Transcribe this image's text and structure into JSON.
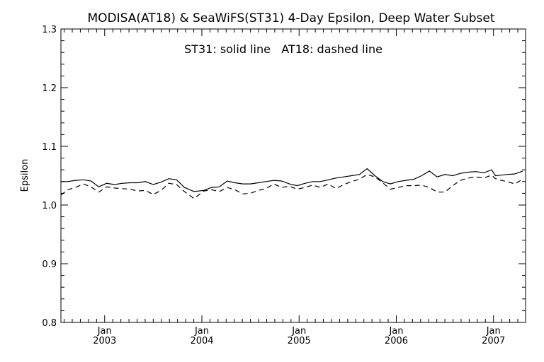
{
  "chart_data": {
    "type": "line",
    "title": "MODISA(AT18) & SeaWiFS(ST31) 4-Day Epsilon, Deep Water Subset",
    "annotation": "ST31: solid line   AT18: dashed line",
    "xlabel": "",
    "ylabel": "Epsilon",
    "ylim": [
      0.8,
      1.3
    ],
    "xlim": [
      2002.55,
      2007.33
    ],
    "yticks": [
      "0.8",
      "0.9",
      "1.0",
      "1.1",
      "1.2",
      "1.3"
    ],
    "xticks": [
      {
        "month": "Jan",
        "year": "2003",
        "x": 2003.0
      },
      {
        "month": "Jan",
        "year": "2004",
        "x": 2004.0
      },
      {
        "month": "Jan",
        "year": "2005",
        "x": 2005.0
      },
      {
        "month": "Jan",
        "year": "2006",
        "x": 2006.0
      },
      {
        "month": "Jan",
        "year": "2007",
        "x": 2007.0
      }
    ],
    "grid": false,
    "legend": "annotation-top-center",
    "series": [
      {
        "name": "ST31",
        "style": "solid",
        "color": "#000000",
        "points": [
          [
            2002.55,
            1.04
          ],
          [
            2002.62,
            1.04
          ],
          [
            2002.7,
            1.042
          ],
          [
            2002.78,
            1.043
          ],
          [
            2002.86,
            1.041
          ],
          [
            2002.94,
            1.031
          ],
          [
            2003.02,
            1.037
          ],
          [
            2003.1,
            1.035
          ],
          [
            2003.18,
            1.037
          ],
          [
            2003.26,
            1.038
          ],
          [
            2003.34,
            1.038
          ],
          [
            2003.42,
            1.04
          ],
          [
            2003.5,
            1.035
          ],
          [
            2003.58,
            1.039
          ],
          [
            2003.66,
            1.045
          ],
          [
            2003.74,
            1.043
          ],
          [
            2003.82,
            1.03
          ],
          [
            2003.92,
            1.023
          ],
          [
            2004.02,
            1.025
          ],
          [
            2004.1,
            1.03
          ],
          [
            2004.18,
            1.031
          ],
          [
            2004.26,
            1.041
          ],
          [
            2004.34,
            1.038
          ],
          [
            2004.42,
            1.036
          ],
          [
            2004.5,
            1.036
          ],
          [
            2004.58,
            1.038
          ],
          [
            2004.66,
            1.04
          ],
          [
            2004.74,
            1.042
          ],
          [
            2004.82,
            1.041
          ],
          [
            2004.9,
            1.036
          ],
          [
            2004.98,
            1.033
          ],
          [
            2005.06,
            1.037
          ],
          [
            2005.14,
            1.04
          ],
          [
            2005.22,
            1.04
          ],
          [
            2005.3,
            1.043
          ],
          [
            2005.38,
            1.046
          ],
          [
            2005.46,
            1.048
          ],
          [
            2005.54,
            1.05
          ],
          [
            2005.62,
            1.052
          ],
          [
            2005.7,
            1.062
          ],
          [
            2005.78,
            1.05
          ],
          [
            2005.86,
            1.04
          ],
          [
            2005.94,
            1.036
          ],
          [
            2006.02,
            1.04
          ],
          [
            2006.1,
            1.042
          ],
          [
            2006.18,
            1.044
          ],
          [
            2006.26,
            1.05
          ],
          [
            2006.34,
            1.058
          ],
          [
            2006.42,
            1.048
          ],
          [
            2006.5,
            1.052
          ],
          [
            2006.58,
            1.05
          ],
          [
            2006.66,
            1.054
          ],
          [
            2006.74,
            1.056
          ],
          [
            2006.82,
            1.057
          ],
          [
            2006.9,
            1.055
          ],
          [
            2006.98,
            1.06
          ],
          [
            2007.02,
            1.05
          ],
          [
            2007.08,
            1.051
          ],
          [
            2007.14,
            1.052
          ],
          [
            2007.22,
            1.053
          ],
          [
            2007.3,
            1.058
          ]
        ]
      },
      {
        "name": "AT18",
        "style": "dashed",
        "color": "#000000",
        "points": [
          [
            2002.55,
            1.017
          ],
          [
            2002.62,
            1.026
          ],
          [
            2002.7,
            1.03
          ],
          [
            2002.78,
            1.036
          ],
          [
            2002.86,
            1.031
          ],
          [
            2002.94,
            1.022
          ],
          [
            2003.02,
            1.031
          ],
          [
            2003.1,
            1.029
          ],
          [
            2003.18,
            1.028
          ],
          [
            2003.26,
            1.027
          ],
          [
            2003.34,
            1.024
          ],
          [
            2003.42,
            1.025
          ],
          [
            2003.5,
            1.018
          ],
          [
            2003.58,
            1.025
          ],
          [
            2003.66,
            1.037
          ],
          [
            2003.74,
            1.035
          ],
          [
            2003.82,
            1.023
          ],
          [
            2003.92,
            1.011
          ],
          [
            2004.02,
            1.024
          ],
          [
            2004.1,
            1.026
          ],
          [
            2004.18,
            1.023
          ],
          [
            2004.26,
            1.03
          ],
          [
            2004.34,
            1.026
          ],
          [
            2004.42,
            1.019
          ],
          [
            2004.5,
            1.02
          ],
          [
            2004.58,
            1.025
          ],
          [
            2004.66,
            1.028
          ],
          [
            2004.74,
            1.036
          ],
          [
            2004.82,
            1.03
          ],
          [
            2004.9,
            1.032
          ],
          [
            2004.98,
            1.027
          ],
          [
            2005.06,
            1.03
          ],
          [
            2005.14,
            1.034
          ],
          [
            2005.22,
            1.03
          ],
          [
            2005.3,
            1.036
          ],
          [
            2005.38,
            1.028
          ],
          [
            2005.46,
            1.035
          ],
          [
            2005.54,
            1.04
          ],
          [
            2005.62,
            1.044
          ],
          [
            2005.7,
            1.052
          ],
          [
            2005.78,
            1.048
          ],
          [
            2005.86,
            1.038
          ],
          [
            2005.94,
            1.027
          ],
          [
            2006.02,
            1.03
          ],
          [
            2006.1,
            1.033
          ],
          [
            2006.18,
            1.033
          ],
          [
            2006.26,
            1.034
          ],
          [
            2006.34,
            1.03
          ],
          [
            2006.42,
            1.022
          ],
          [
            2006.5,
            1.022
          ],
          [
            2006.58,
            1.033
          ],
          [
            2006.66,
            1.042
          ],
          [
            2006.74,
            1.046
          ],
          [
            2006.82,
            1.048
          ],
          [
            2006.9,
            1.046
          ],
          [
            2006.98,
            1.051
          ],
          [
            2007.02,
            1.045
          ],
          [
            2007.08,
            1.042
          ],
          [
            2007.14,
            1.04
          ],
          [
            2007.22,
            1.036
          ],
          [
            2007.3,
            1.044
          ]
        ]
      }
    ]
  }
}
